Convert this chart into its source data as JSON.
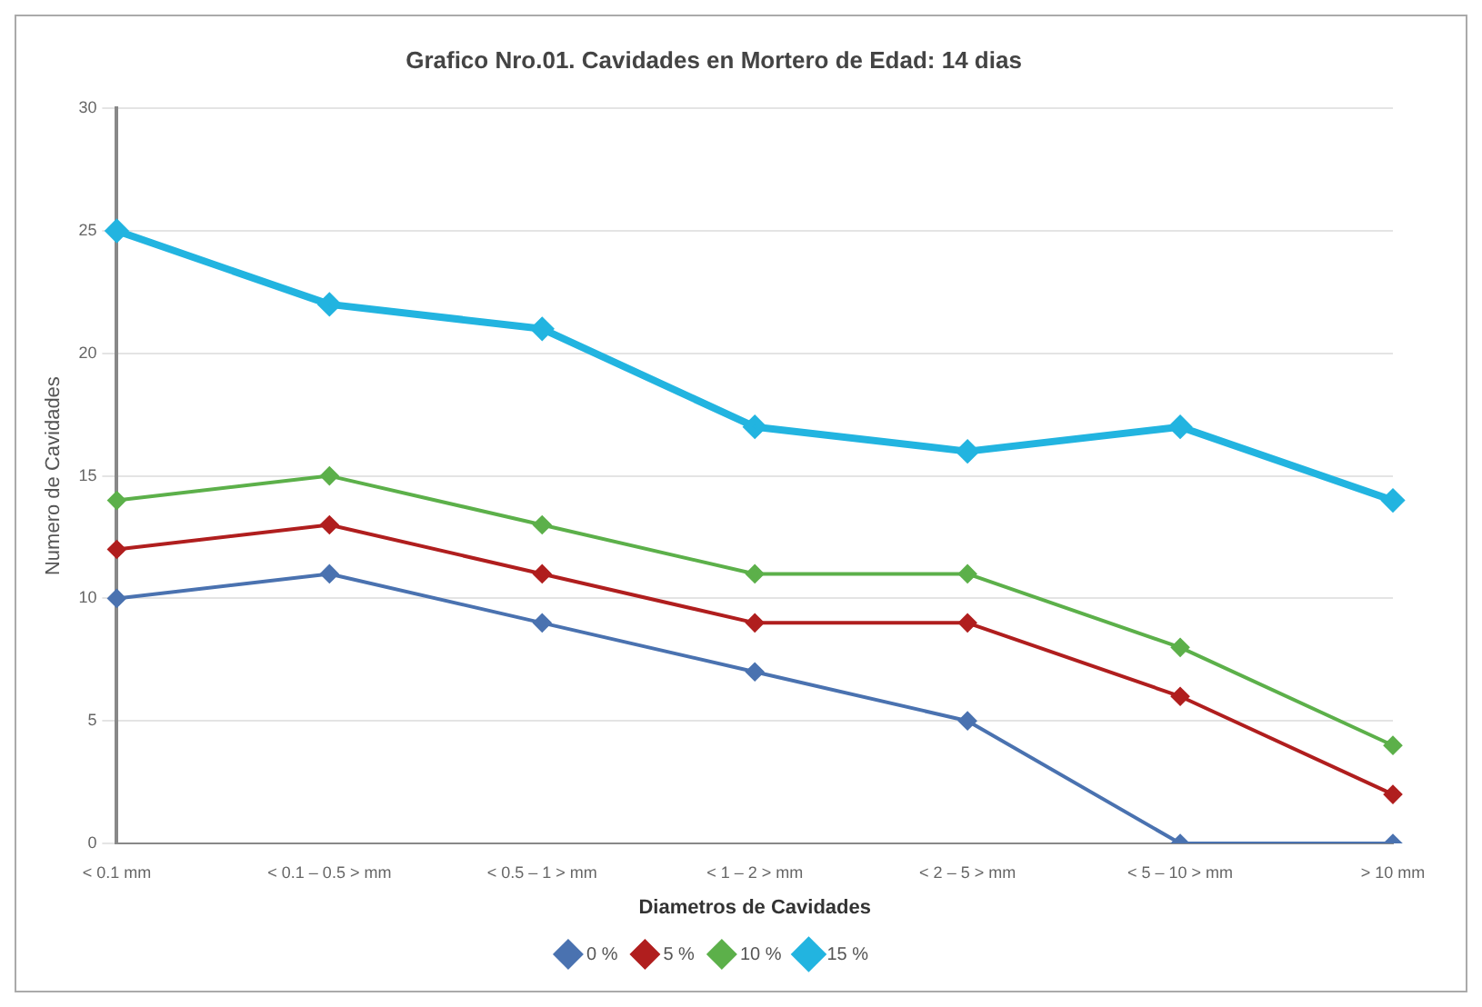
{
  "chart_data": {
    "type": "line",
    "title": "Grafico Nro.01. Cavidades en Mortero de Edad: 14 dias",
    "xlabel": "Diametros de Cavidades",
    "ylabel": "Numero de Cavidades",
    "categories": [
      "< 0.1 mm",
      "< 0.1 – 0.5 > mm",
      "< 0.5 – 1 > mm",
      "< 1 – 2 > mm",
      "< 2 – 5 > mm",
      "< 5 – 10 > mm",
      "> 10 mm"
    ],
    "series": [
      {
        "name": "0 %",
        "color": "#4a72b0",
        "values": [
          10,
          11,
          9,
          7,
          5,
          0,
          0
        ]
      },
      {
        "name": "5 %",
        "color": "#b01e1e",
        "values": [
          12,
          13,
          11,
          9,
          9,
          6,
          2
        ]
      },
      {
        "name": "10 %",
        "color": "#5cb04a",
        "values": [
          14,
          15,
          13,
          11,
          11,
          8,
          4
        ]
      },
      {
        "name": "15 %",
        "color": "#22b4e0",
        "values": [
          25,
          22,
          21,
          17,
          16,
          17,
          14
        ]
      }
    ],
    "ylim": [
      0,
      30
    ],
    "yticks": [
      0,
      5,
      10,
      15,
      20,
      25,
      30
    ],
    "grid": "y",
    "legend": "bottom",
    "marker": "diamond",
    "line_style": "solid"
  }
}
